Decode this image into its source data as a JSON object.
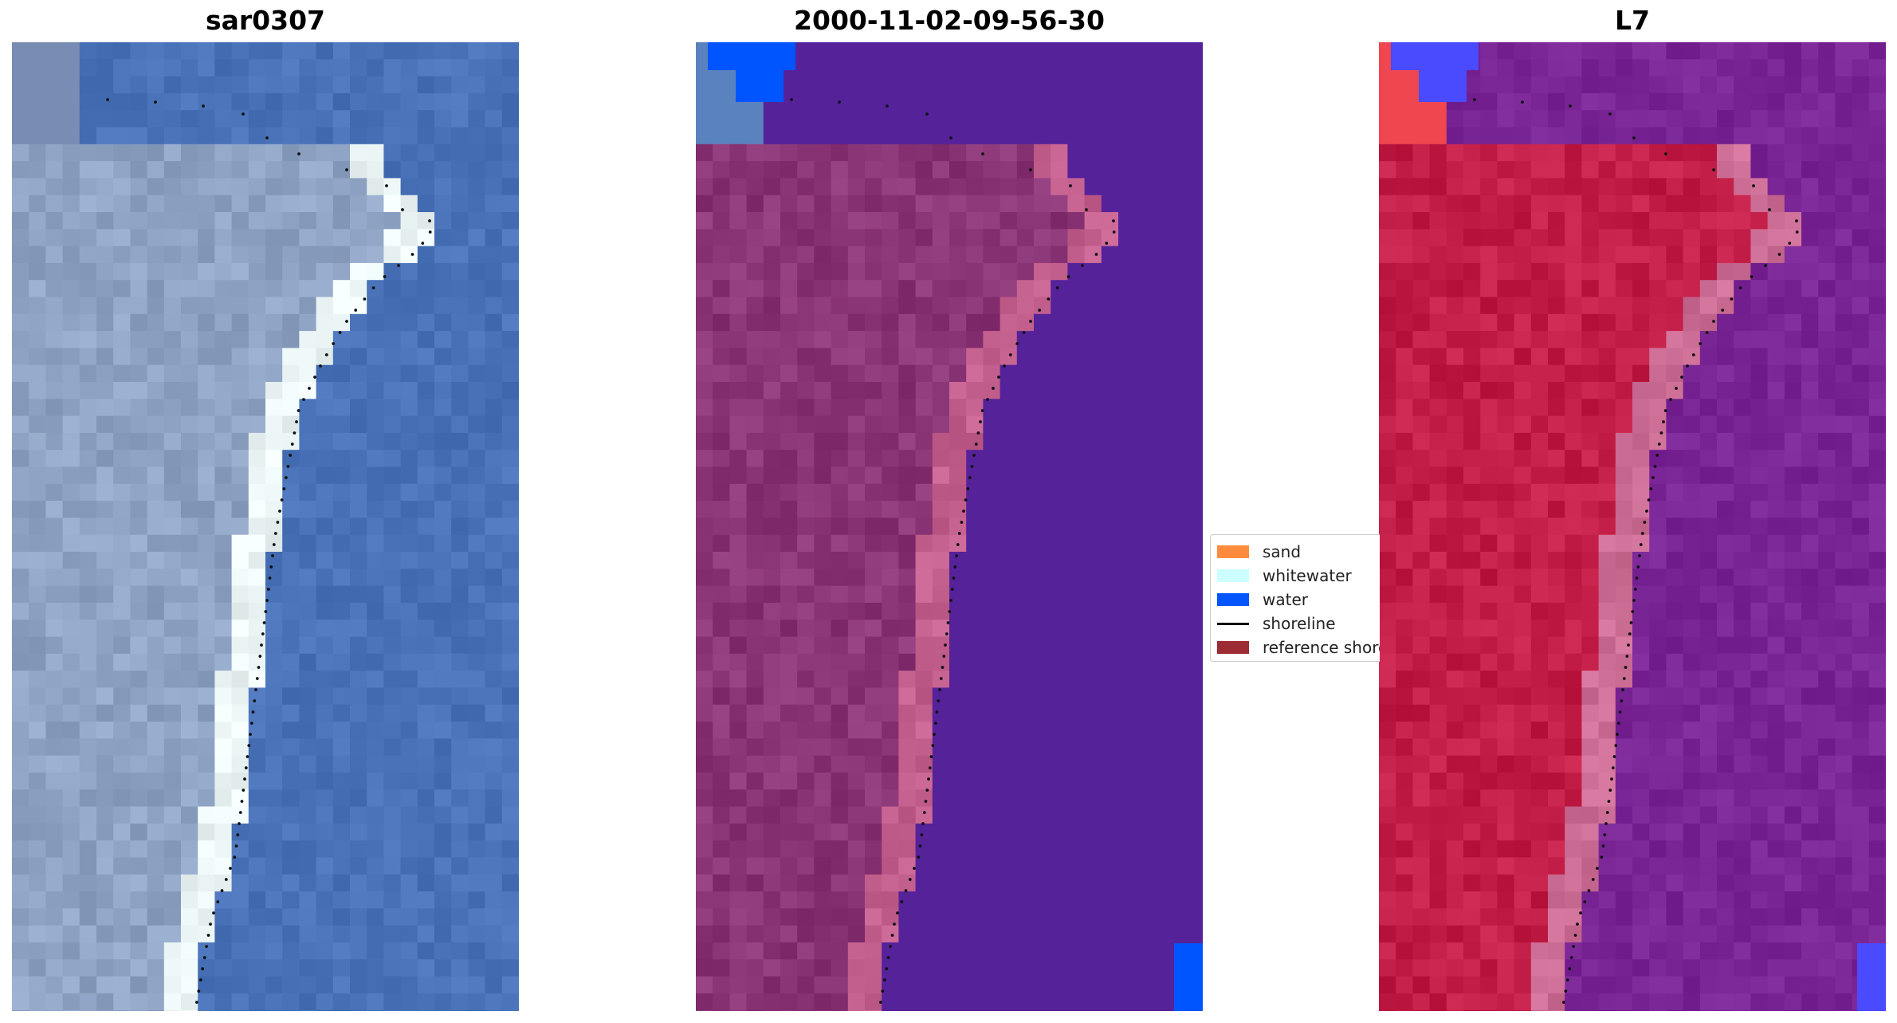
{
  "panels": [
    {
      "title": "sar0307",
      "render": "rgb"
    },
    {
      "title": "2000-11-02-09-56-30",
      "render": "classified"
    },
    {
      "title": "L7",
      "render": "index"
    }
  ],
  "legend": {
    "items": [
      {
        "label": "sand",
        "color": "#ff8c3c",
        "kind": "patch"
      },
      {
        "label": "whitewater",
        "color": "#ccffff",
        "kind": "patch"
      },
      {
        "label": "water",
        "color": "#0055ff",
        "kind": "patch"
      },
      {
        "label": "shoreline",
        "color": "#000000",
        "kind": "line"
      },
      {
        "label": "reference shoreline",
        "color": "#9c2b33",
        "kind": "patch"
      }
    ]
  },
  "colors": {
    "water_rgb": "#4a72b8",
    "land_rgb": "#8fa4c4",
    "classified_water": "#55229a",
    "classified_land": "#8a3576",
    "classified_bright": "#c4608e",
    "index_land": "#c21d46",
    "index_water": "#7a2596",
    "index_cold": "#4a4aff"
  }
}
